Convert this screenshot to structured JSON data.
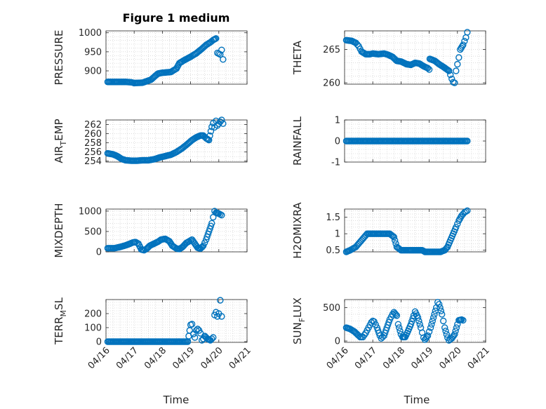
{
  "figure_title": "Figure 1 medium",
  "colors": {
    "series": "#0072BD",
    "axis": "#262626",
    "grid": "#c8c8c8"
  },
  "chart_data": [
    {
      "type": "scatter",
      "ylabel": "PRESSURE",
      "ylim": [
        865,
        1005
      ],
      "yticks": [
        {
          "v": 900,
          "t": "900"
        },
        {
          "v": 950,
          "t": "950"
        },
        {
          "v": 1000,
          "t": "1000"
        }
      ],
      "ygrid_minor_step": 10,
      "xlim": [
        0,
        5
      ],
      "show_xticks": false,
      "title_key": "figure_title",
      "points": [
        [
          0.06,
          871
        ],
        [
          0.4,
          871
        ],
        [
          0.7,
          871
        ],
        [
          0.9,
          870
        ],
        [
          1.0,
          868
        ],
        [
          1.3,
          869
        ],
        [
          1.45,
          873
        ],
        [
          1.6,
          877
        ],
        [
          1.75,
          887
        ],
        [
          1.85,
          893
        ],
        [
          2.0,
          895
        ],
        [
          2.3,
          897
        ],
        [
          2.5,
          906
        ],
        [
          2.6,
          920
        ],
        [
          2.75,
          927
        ],
        [
          2.9,
          933
        ],
        [
          3.0,
          937
        ],
        [
          3.2,
          946
        ],
        [
          3.4,
          958
        ],
        [
          3.55,
          968
        ],
        [
          3.7,
          975
        ],
        [
          3.8,
          981
        ],
        [
          3.9,
          985
        ],
        [
          3.95,
          947
        ],
        [
          4.05,
          943
        ],
        [
          4.1,
          955
        ],
        [
          4.15,
          930
        ]
      ]
    },
    {
      "type": "scatter",
      "ylabel": "THETA",
      "ylim": [
        259.8,
        267.8
      ],
      "yticks": [
        {
          "v": 260,
          "t": "260"
        },
        {
          "v": 265,
          "t": "265"
        }
      ],
      "ygrid_minor_step": 1,
      "xlim": [
        0,
        5
      ],
      "show_xticks": false,
      "points": [
        [
          0.06,
          266.4
        ],
        [
          0.25,
          266.3
        ],
        [
          0.4,
          266
        ],
        [
          0.5,
          265.5
        ],
        [
          0.6,
          264.7
        ],
        [
          0.75,
          264.3
        ],
        [
          0.9,
          264.3
        ],
        [
          1.0,
          264.4
        ],
        [
          1.2,
          264.3
        ],
        [
          1.4,
          264.4
        ],
        [
          1.55,
          264.2
        ],
        [
          1.7,
          263.9
        ],
        [
          1.85,
          263.3
        ],
        [
          2.0,
          263.2
        ],
        [
          2.1,
          263
        ],
        [
          2.2,
          262.8
        ],
        [
          2.35,
          262.7
        ],
        [
          2.5,
          263
        ],
        [
          2.65,
          262.9
        ],
        [
          2.8,
          262.5
        ],
        [
          2.95,
          262.2
        ],
        [
          3.0,
          262
        ],
        [
          3.02,
          263.6
        ],
        [
          3.2,
          263.3
        ],
        [
          3.35,
          262.8
        ],
        [
          3.5,
          262.4
        ],
        [
          3.6,
          262.1
        ],
        [
          3.7,
          261.8
        ],
        [
          3.8,
          260.6
        ],
        [
          3.85,
          260.1
        ],
        [
          3.9,
          260
        ],
        [
          3.95,
          261.8
        ],
        [
          4.05,
          263.8
        ],
        [
          4.1,
          265
        ],
        [
          4.2,
          265.7
        ],
        [
          4.3,
          266.8
        ],
        [
          4.35,
          267.6
        ]
      ]
    },
    {
      "type": "scatter",
      "ylabel": "AIR_TEMP",
      "ylabel_sub": {
        "base": "AIR",
        "sub": "T",
        "rest": "EMP"
      },
      "ylim": [
        253.8,
        263
      ],
      "yticks": [
        {
          "v": 254,
          "t": "254"
        },
        {
          "v": 256,
          "t": "256"
        },
        {
          "v": 258,
          "t": "258"
        },
        {
          "v": 260,
          "t": "260"
        },
        {
          "v": 262,
          "t": "262"
        }
      ],
      "ygrid_minor_step": 1,
      "xlim": [
        0,
        5
      ],
      "show_xticks": false,
      "points": [
        [
          0.06,
          255.7
        ],
        [
          0.25,
          255.5
        ],
        [
          0.4,
          255.1
        ],
        [
          0.55,
          254.5
        ],
        [
          0.7,
          254.2
        ],
        [
          0.9,
          254.1
        ],
        [
          1.1,
          254.1
        ],
        [
          1.3,
          254.2
        ],
        [
          1.5,
          254.2
        ],
        [
          1.7,
          254.4
        ],
        [
          1.9,
          254.8
        ],
        [
          2.1,
          255.1
        ],
        [
          2.3,
          255.4
        ],
        [
          2.5,
          256
        ],
        [
          2.7,
          256.8
        ],
        [
          2.9,
          257.8
        ],
        [
          3.05,
          258.6
        ],
        [
          3.2,
          259.2
        ],
        [
          3.35,
          259.6
        ],
        [
          3.45,
          259.6
        ],
        [
          3.55,
          259
        ],
        [
          3.65,
          258.6
        ],
        [
          3.75,
          261.5
        ],
        [
          3.8,
          262.3
        ],
        [
          3.85,
          261.4
        ],
        [
          3.9,
          262.8
        ],
        [
          3.95,
          261.8
        ],
        [
          4.05,
          262.6
        ],
        [
          4.1,
          263
        ],
        [
          4.15,
          262.2
        ]
      ]
    },
    {
      "type": "scatter",
      "ylabel": "RAINFALL",
      "ylim": [
        -1,
        1
      ],
      "yticks": [
        {
          "v": -1,
          "t": "-1"
        },
        {
          "v": 0,
          "t": "0"
        },
        {
          "v": 1,
          "t": "1"
        }
      ],
      "ygrid_minor_step": 0.2,
      "xlim": [
        0,
        5
      ],
      "show_xticks": false,
      "points": [
        [
          0.06,
          0
        ],
        [
          4.35,
          0
        ]
      ],
      "dense_line": true
    },
    {
      "type": "scatter",
      "ylabel": "MIXDEPTH",
      "ylim": [
        0,
        1050
      ],
      "yticks": [
        {
          "v": 0,
          "t": "0"
        },
        {
          "v": 500,
          "t": "500"
        },
        {
          "v": 1000,
          "t": "1000"
        }
      ],
      "ygrid_minor_step": 100,
      "xlim": [
        0,
        5
      ],
      "show_xticks": false,
      "points": [
        [
          0.06,
          90
        ],
        [
          0.3,
          90
        ],
        [
          0.5,
          120
        ],
        [
          0.7,
          160
        ],
        [
          0.85,
          200
        ],
        [
          0.95,
          230
        ],
        [
          1.05,
          240
        ],
        [
          1.15,
          200
        ],
        [
          1.25,
          60
        ],
        [
          1.35,
          40
        ],
        [
          1.45,
          80
        ],
        [
          1.55,
          150
        ],
        [
          1.7,
          200
        ],
        [
          1.85,
          250
        ],
        [
          1.95,
          300
        ],
        [
          2.1,
          320
        ],
        [
          2.25,
          260
        ],
        [
          2.35,
          150
        ],
        [
          2.5,
          80
        ],
        [
          2.6,
          70
        ],
        [
          2.7,
          110
        ],
        [
          2.85,
          220
        ],
        [
          2.95,
          260
        ],
        [
          3.05,
          300
        ],
        [
          3.15,
          200
        ],
        [
          3.25,
          100
        ],
        [
          3.35,
          80
        ],
        [
          3.45,
          150
        ],
        [
          3.55,
          300
        ],
        [
          3.65,
          500
        ],
        [
          3.75,
          700
        ],
        [
          3.8,
          850
        ],
        [
          3.85,
          1000
        ],
        [
          3.9,
          960
        ],
        [
          4.0,
          940
        ],
        [
          4.1,
          900
        ]
      ]
    },
    {
      "type": "scatter",
      "ylabel": "H2OMIXRA",
      "ylim": [
        0.45,
        1.75
      ],
      "yticks": [
        {
          "v": 0.5,
          "t": "0.5"
        },
        {
          "v": 1,
          "t": "1"
        },
        {
          "v": 1.5,
          "t": "1.5"
        }
      ],
      "ygrid_minor_step": 0.1,
      "xlim": [
        0,
        5
      ],
      "show_xticks": false,
      "points": [
        [
          0.06,
          0.45
        ],
        [
          0.2,
          0.5
        ],
        [
          0.4,
          0.6
        ],
        [
          0.6,
          0.8
        ],
        [
          0.8,
          1.0
        ],
        [
          1.0,
          1.0
        ],
        [
          1.2,
          1.0
        ],
        [
          1.4,
          1.0
        ],
        [
          1.6,
          1.0
        ],
        [
          1.75,
          0.9
        ],
        [
          1.85,
          0.6
        ],
        [
          2.0,
          0.5
        ],
        [
          2.3,
          0.5
        ],
        [
          2.6,
          0.5
        ],
        [
          2.75,
          0.5
        ],
        [
          2.85,
          0.45
        ],
        [
          3.0,
          0.45
        ],
        [
          3.2,
          0.45
        ],
        [
          3.4,
          0.45
        ],
        [
          3.55,
          0.5
        ],
        [
          3.65,
          0.6
        ],
        [
          3.75,
          0.8
        ],
        [
          3.85,
          1.0
        ],
        [
          3.95,
          1.2
        ],
        [
          4.05,
          1.4
        ],
        [
          4.15,
          1.55
        ],
        [
          4.25,
          1.65
        ],
        [
          4.35,
          1.7
        ]
      ]
    },
    {
      "type": "scatter",
      "ylabel": "TERR_MSL",
      "ylabel_sub": {
        "base": "TERR",
        "sub": "M",
        "rest": "SL"
      },
      "ylim": [
        -5,
        300
      ],
      "yticks": [
        {
          "v": 0,
          "t": "0"
        },
        {
          "v": 100,
          "t": "100"
        },
        {
          "v": 200,
          "t": "200"
        }
      ],
      "ygrid_minor_step": 20,
      "xlim": [
        0,
        5
      ],
      "show_xticks": true,
      "points": [
        [
          0.06,
          0
        ],
        [
          0.5,
          0
        ],
        [
          1.0,
          0
        ],
        [
          1.5,
          0
        ],
        [
          2.0,
          0
        ],
        [
          2.5,
          0
        ],
        [
          2.9,
          0
        ],
        [
          3.0,
          120
        ],
        [
          3.05,
          125
        ],
        [
          3.1,
          55
        ],
        [
          3.15,
          30
        ],
        [
          3.2,
          80
        ],
        [
          3.25,
          90
        ],
        [
          3.3,
          80
        ],
        [
          3.35,
          60
        ],
        [
          3.4,
          10
        ],
        [
          3.45,
          20
        ],
        [
          3.5,
          40
        ],
        [
          3.6,
          20
        ],
        [
          3.7,
          10
        ],
        [
          3.8,
          30
        ],
        [
          3.85,
          190
        ],
        [
          3.9,
          210
        ],
        [
          3.95,
          180
        ],
        [
          4.0,
          200
        ],
        [
          4.05,
          295
        ],
        [
          4.1,
          180
        ]
      ]
    },
    {
      "type": "scatter",
      "ylabel": "SUN_FLUX",
      "ylabel_sub": {
        "base": "SUN",
        "sub": "F",
        "rest": "LUX"
      },
      "ylim": [
        -20,
        620
      ],
      "yticks": [
        {
          "v": 0,
          "t": "0"
        },
        {
          "v": 500,
          "t": "500"
        }
      ],
      "ygrid_minor_step": 100,
      "xlim": [
        0,
        5
      ],
      "show_xticks": true,
      "points": [
        [
          0.06,
          200
        ],
        [
          0.2,
          180
        ],
        [
          0.35,
          140
        ],
        [
          0.5,
          80
        ],
        [
          0.55,
          60
        ],
        [
          0.65,
          60
        ],
        [
          0.75,
          120
        ],
        [
          0.85,
          200
        ],
        [
          0.95,
          280
        ],
        [
          1.0,
          300
        ],
        [
          1.05,
          290
        ],
        [
          1.15,
          200
        ],
        [
          1.25,
          80
        ],
        [
          1.3,
          40
        ],
        [
          1.4,
          80
        ],
        [
          1.5,
          200
        ],
        [
          1.6,
          320
        ],
        [
          1.7,
          400
        ],
        [
          1.75,
          430
        ],
        [
          1.85,
          380
        ],
        [
          1.9,
          250
        ],
        [
          2.0,
          100
        ],
        [
          2.05,
          60
        ],
        [
          2.15,
          60
        ],
        [
          2.25,
          150
        ],
        [
          2.35,
          250
        ],
        [
          2.45,
          380
        ],
        [
          2.5,
          440
        ],
        [
          2.6,
          350
        ],
        [
          2.7,
          200
        ],
        [
          2.8,
          50
        ],
        [
          2.85,
          20
        ],
        [
          2.95,
          80
        ],
        [
          3.05,
          200
        ],
        [
          3.15,
          350
        ],
        [
          3.25,
          500
        ],
        [
          3.3,
          580
        ],
        [
          3.35,
          550
        ],
        [
          3.45,
          400
        ],
        [
          3.55,
          200
        ],
        [
          3.65,
          50
        ],
        [
          3.7,
          10
        ],
        [
          3.8,
          40
        ],
        [
          3.9,
          100
        ],
        [
          4.0,
          250
        ],
        [
          4.05,
          310
        ],
        [
          4.15,
          320
        ],
        [
          4.2,
          310
        ]
      ]
    }
  ],
  "xaxis": {
    "label": "Time",
    "ticks": [
      {
        "v": 0,
        "t": "04/16"
      },
      {
        "v": 1,
        "t": "04/17"
      },
      {
        "v": 2,
        "t": "04/18"
      },
      {
        "v": 3,
        "t": "04/19"
      },
      {
        "v": 4,
        "t": "04/20"
      },
      {
        "v": 5,
        "t": "04/21"
      }
    ],
    "minor_step": 0.25
  }
}
